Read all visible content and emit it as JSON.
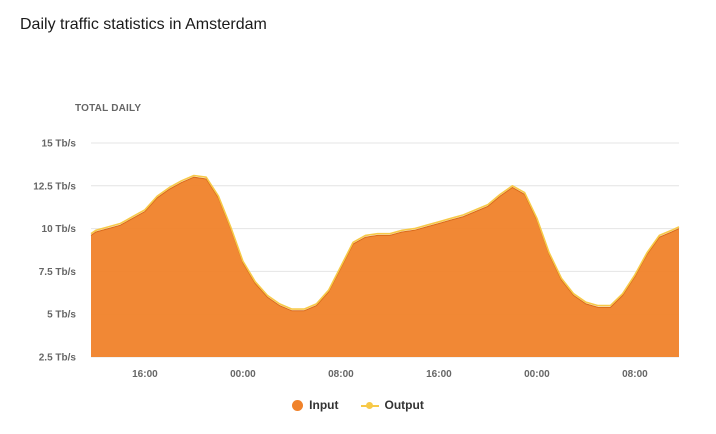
{
  "title": "Daily traffic statistics in Amsterdam",
  "subtitle": "TOTAL DAILY",
  "colors": {
    "input": "#f0822a",
    "output": "#f7c948",
    "grid": "#e4e4e4"
  },
  "legend": {
    "input_label": "Input",
    "output_label": "Output"
  },
  "chart_data": {
    "type": "area",
    "title": "Daily traffic statistics in Amsterdam",
    "subtitle": "TOTAL DAILY",
    "xlabel": "",
    "ylabel": "",
    "x_ticks": [
      {
        "hour": 16,
        "label": "16:00"
      },
      {
        "hour": 24,
        "label": "00:00"
      },
      {
        "hour": 32,
        "label": "08:00"
      },
      {
        "hour": 40,
        "label": "16:00"
      },
      {
        "hour": 48,
        "label": "00:00"
      },
      {
        "hour": 56,
        "label": "08:00"
      }
    ],
    "y_ticks": [
      {
        "value": 2.5,
        "label": "2.5 Tb/s"
      },
      {
        "value": 5,
        "label": "5 Tb/s"
      },
      {
        "value": 7.5,
        "label": "7.5 Tb/s"
      },
      {
        "value": 10,
        "label": "10 Tb/s"
      },
      {
        "value": 12.5,
        "label": "12.5 Tb/s"
      },
      {
        "value": 15,
        "label": "15 Tb/s"
      }
    ],
    "ylim": [
      2.5,
      15
    ],
    "xlim_hours": [
      11.6,
      59.6
    ],
    "grid": true,
    "legend_position": "bottom-center",
    "x_hours": [
      11.6,
      12,
      13,
      14,
      15,
      16,
      17,
      18,
      19,
      20,
      21,
      22,
      23,
      24,
      25,
      26,
      27,
      28,
      29,
      30,
      31,
      32,
      33,
      34,
      35,
      36,
      37,
      38,
      39,
      40,
      41,
      42,
      43,
      44,
      45,
      46,
      47,
      48,
      49,
      50,
      51,
      52,
      53,
      54,
      55,
      56,
      57,
      58,
      59,
      59.6
    ],
    "series": [
      {
        "name": "Input",
        "values": [
          9.6,
          9.8,
          10.0,
          10.2,
          10.6,
          11.0,
          11.8,
          12.3,
          12.7,
          13.0,
          12.9,
          11.8,
          10.0,
          8.0,
          6.8,
          6.0,
          5.5,
          5.2,
          5.2,
          5.5,
          6.3,
          7.7,
          9.1,
          9.5,
          9.6,
          9.6,
          9.8,
          9.9,
          10.1,
          10.3,
          10.5,
          10.7,
          11.0,
          11.3,
          11.9,
          12.4,
          12.0,
          10.5,
          8.5,
          7.0,
          6.1,
          5.6,
          5.4,
          5.4,
          6.1,
          7.2,
          8.5,
          9.5,
          9.8,
          10.0
        ]
      },
      {
        "name": "Output",
        "values": [
          9.7,
          9.9,
          10.1,
          10.3,
          10.7,
          11.1,
          11.9,
          12.4,
          12.8,
          13.1,
          13.0,
          11.9,
          10.1,
          8.1,
          6.9,
          6.1,
          5.6,
          5.3,
          5.3,
          5.6,
          6.4,
          7.8,
          9.2,
          9.6,
          9.7,
          9.7,
          9.9,
          10.0,
          10.2,
          10.4,
          10.6,
          10.8,
          11.1,
          11.4,
          12.0,
          12.5,
          12.1,
          10.6,
          8.6,
          7.1,
          6.2,
          5.7,
          5.5,
          5.5,
          6.2,
          7.3,
          8.6,
          9.6,
          9.9,
          10.1
        ]
      }
    ]
  }
}
